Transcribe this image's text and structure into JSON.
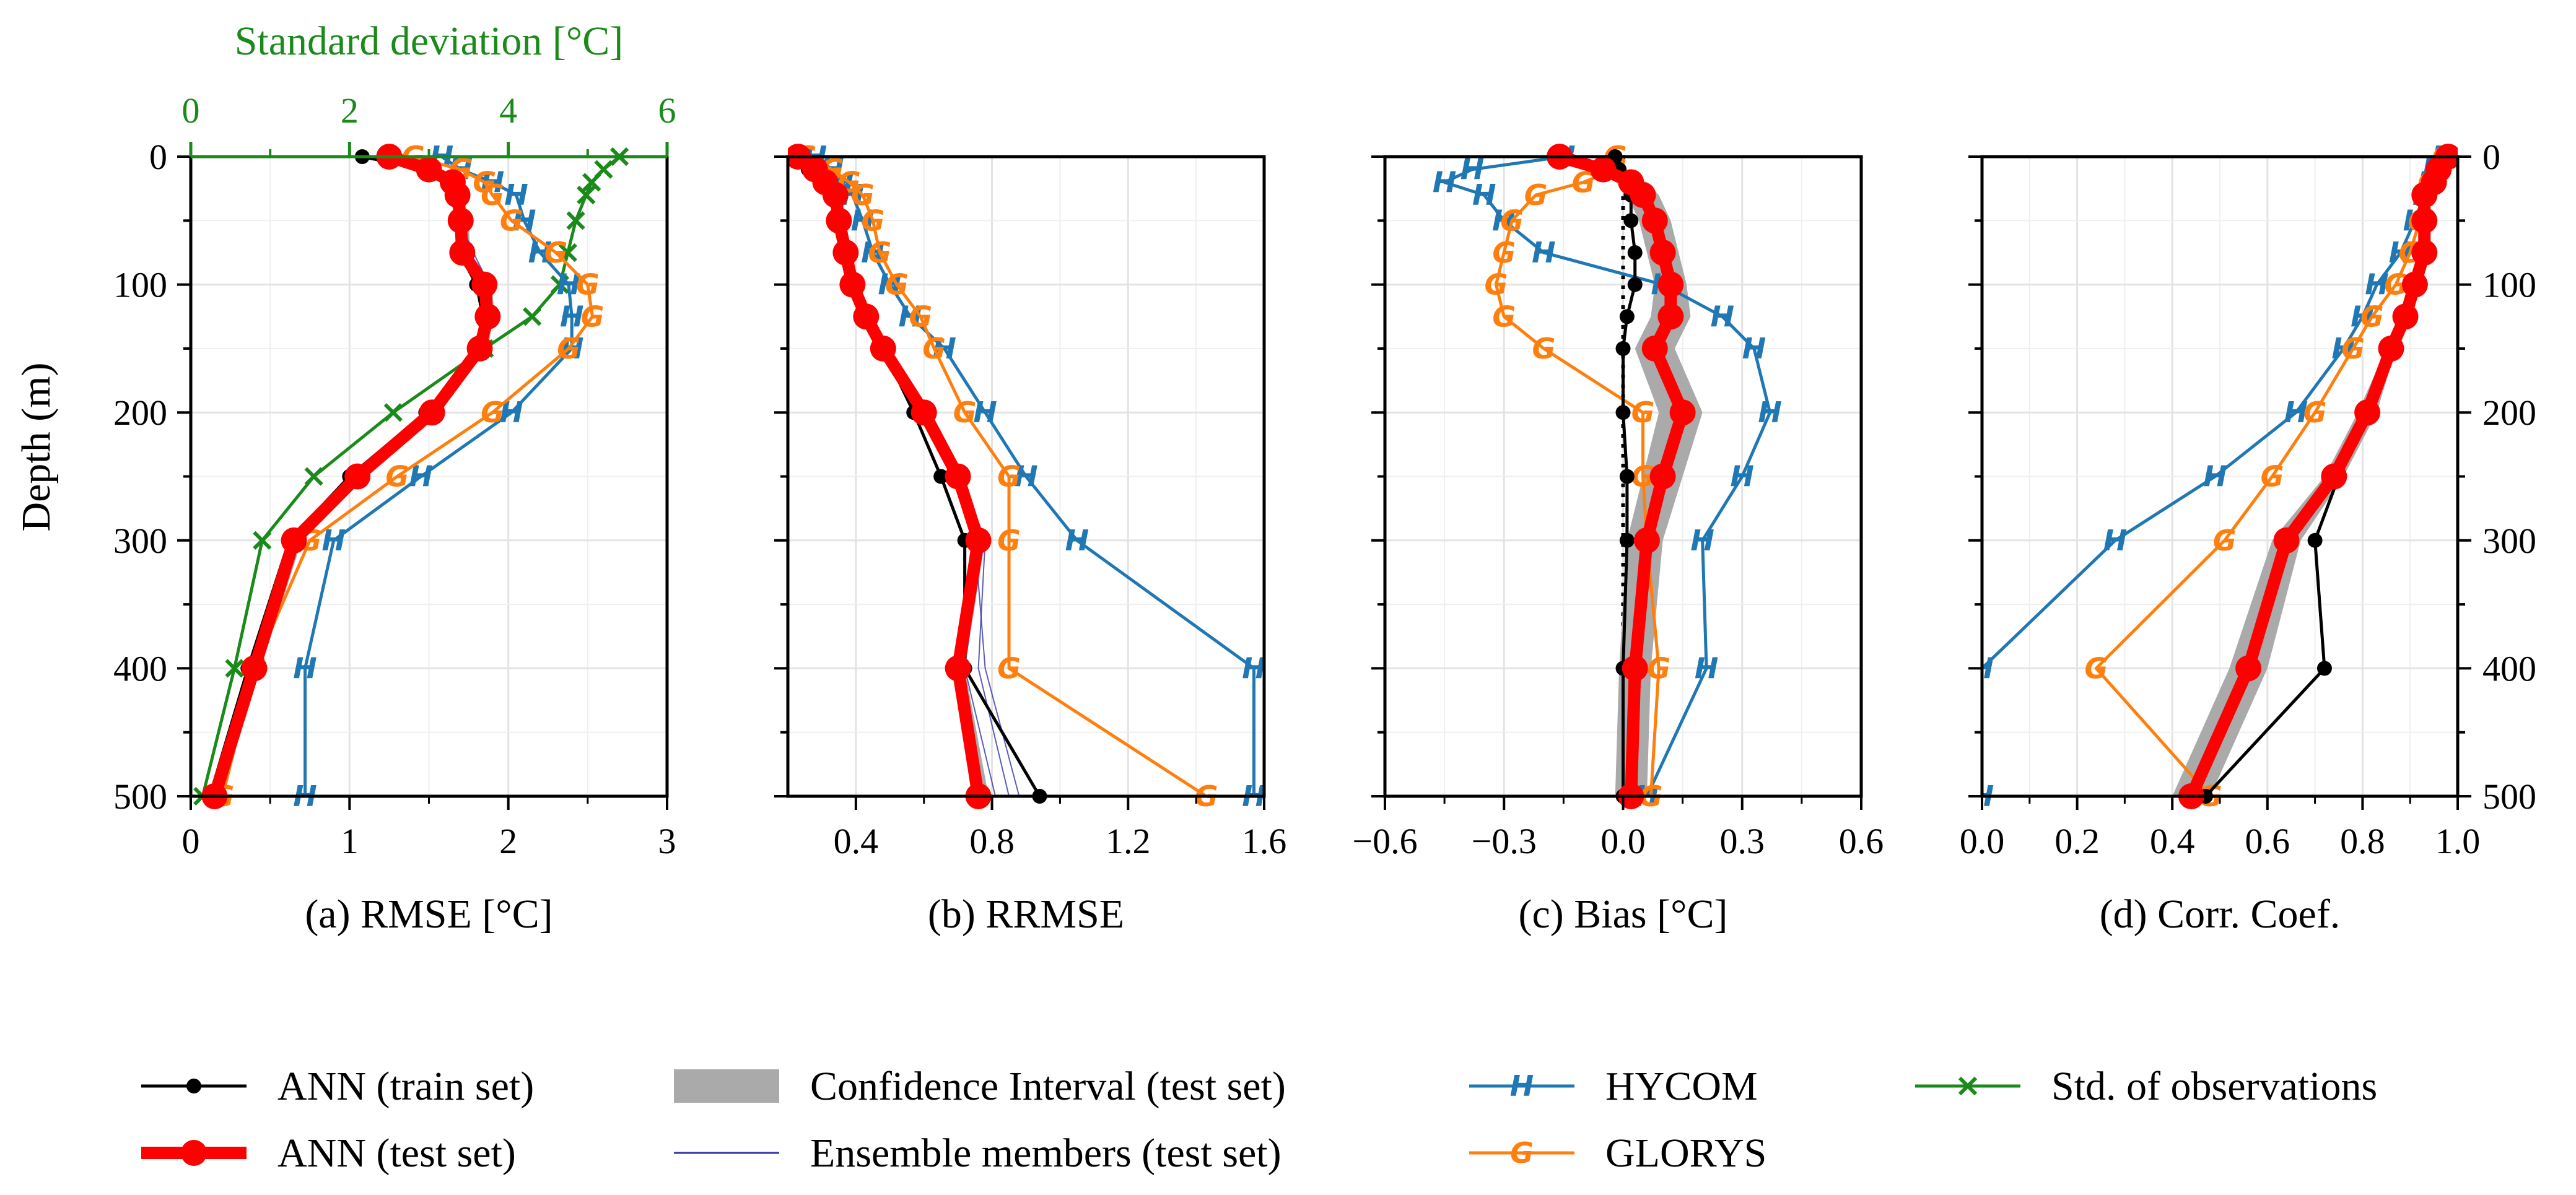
{
  "colors": {
    "train": "#000000",
    "test": "#ff0000",
    "ci": "#aaaaaa",
    "ensemble": "#3333aa",
    "hycom": "#1f77b4",
    "glorys": "#ff7f0e",
    "std": "#1a8a1a"
  },
  "chart_data": {
    "type": "line",
    "y_axis": {
      "label": "Depth (m)",
      "ylim": [
        500,
        0
      ],
      "ticks": [
        0,
        100,
        200,
        300,
        400,
        500
      ],
      "inverted": true
    },
    "depths": [
      0,
      10,
      20,
      30,
      50,
      75,
      100,
      125,
      150,
      200,
      250,
      300,
      400,
      500
    ],
    "panels": [
      {
        "id": "a",
        "xlabel": "(a) RMSE [°C]",
        "xlim": [
          0,
          3
        ],
        "xticks": [
          0,
          1,
          2,
          3
        ],
        "xtick_labels": [
          "0",
          "1",
          "2",
          "3"
        ],
        "top_axis": {
          "label": "Standard deviation [°C]",
          "xlim": [
            0,
            6
          ],
          "ticks": [
            0,
            2,
            4,
            6
          ],
          "tick_labels": [
            "0",
            "2",
            "4",
            "6"
          ]
        },
        "series": [
          {
            "name": "train",
            "values": [
              1.08,
              1.48,
              1.62,
              1.66,
              1.68,
              1.69,
              1.8,
              1.84,
              1.8,
              1.48,
              1.0,
              0.62,
              0.36,
              0.12
            ]
          },
          {
            "name": "test",
            "values": [
              1.25,
              1.5,
              1.65,
              1.68,
              1.7,
              1.71,
              1.85,
              1.87,
              1.82,
              1.52,
              1.05,
              0.65,
              0.4,
              0.15
            ]
          },
          {
            "name": "hycom",
            "values": [
              1.58,
              1.7,
              1.9,
              2.05,
              2.1,
              2.2,
              2.38,
              2.4,
              2.4,
              2.02,
              1.45,
              0.9,
              0.72,
              0.72
            ]
          },
          {
            "name": "glorys",
            "values": [
              1.4,
              1.7,
              1.85,
              1.9,
              2.02,
              2.3,
              2.5,
              2.53,
              2.38,
              1.9,
              1.3,
              0.75,
              0.4,
              0.2
            ]
          },
          {
            "name": "std",
            "values": [
              5.4,
              5.2,
              5.05,
              4.98,
              4.85,
              4.75,
              4.65,
              4.3,
              3.7,
              2.55,
              1.55,
              0.9,
              0.55,
              0.15
            ]
          }
        ],
        "ci": {
          "lo": [
            1.22,
            1.47,
            1.62,
            1.65,
            1.67,
            1.68,
            1.82,
            1.84,
            1.79,
            1.48,
            1.01,
            0.61,
            0.36,
            0.12
          ],
          "hi": [
            1.3,
            1.54,
            1.69,
            1.72,
            1.75,
            1.76,
            1.9,
            1.91,
            1.87,
            1.57,
            1.1,
            0.7,
            0.44,
            0.19
          ]
        },
        "ensemble": [
          [
            1.24,
            1.5,
            1.64,
            1.67,
            1.72,
            1.74,
            1.86,
            1.86,
            1.83,
            1.53,
            1.06,
            0.66,
            0.4,
            0.15
          ],
          [
            1.27,
            1.52,
            1.66,
            1.7,
            1.7,
            1.72,
            1.84,
            1.88,
            1.81,
            1.51,
            1.04,
            0.64,
            0.39,
            0.16
          ],
          [
            1.22,
            1.48,
            1.63,
            1.66,
            1.69,
            1.78,
            1.88,
            1.86,
            1.84,
            1.55,
            1.08,
            0.67,
            0.41,
            0.14
          ]
        ]
      },
      {
        "id": "b",
        "xlabel": "(b) RRMSE",
        "xlim": [
          0.2,
          1.6
        ],
        "xticks": [
          0.4,
          0.8,
          1.2,
          1.6
        ],
        "xtick_labels": [
          "0.4",
          "0.8",
          "1.2",
          "1.6"
        ],
        "series": [
          {
            "name": "train",
            "values": [
              0.21,
              0.26,
              0.3,
              0.33,
              0.35,
              0.37,
              0.4,
              0.44,
              0.48,
              0.57,
              0.65,
              0.72,
              0.72,
              0.94
            ]
          },
          {
            "name": "test",
            "values": [
              0.23,
              0.28,
              0.31,
              0.34,
              0.35,
              0.37,
              0.39,
              0.43,
              0.48,
              0.6,
              0.7,
              0.76,
              0.7,
              0.76
            ]
          },
          {
            "name": "hycom",
            "values": [
              0.28,
              0.33,
              0.36,
              0.39,
              0.42,
              0.45,
              0.5,
              0.56,
              0.66,
              0.78,
              0.9,
              1.05,
              1.57,
              1.57
            ]
          },
          {
            "name": "glorys",
            "values": [
              0.25,
              0.33,
              0.38,
              0.42,
              0.45,
              0.47,
              0.52,
              0.59,
              0.63,
              0.72,
              0.85,
              0.85,
              0.85,
              1.43
            ]
          }
        ],
        "ci": {
          "lo": [
            0.22,
            0.27,
            0.3,
            0.33,
            0.34,
            0.36,
            0.38,
            0.42,
            0.47,
            0.59,
            0.69,
            0.74,
            0.69,
            0.74
          ],
          "hi": [
            0.24,
            0.29,
            0.32,
            0.35,
            0.36,
            0.38,
            0.4,
            0.44,
            0.49,
            0.61,
            0.71,
            0.78,
            0.72,
            0.79
          ]
        },
        "ensemble": [
          [
            0.23,
            0.28,
            0.31,
            0.34,
            0.35,
            0.37,
            0.39,
            0.43,
            0.48,
            0.61,
            0.71,
            0.78,
            0.76,
            0.85
          ],
          [
            0.23,
            0.28,
            0.31,
            0.34,
            0.35,
            0.37,
            0.39,
            0.43,
            0.48,
            0.6,
            0.7,
            0.77,
            0.72,
            0.81
          ],
          [
            0.23,
            0.28,
            0.31,
            0.34,
            0.35,
            0.37,
            0.39,
            0.43,
            0.48,
            0.59,
            0.69,
            0.75,
            0.78,
            0.88
          ]
        ]
      },
      {
        "id": "c",
        "xlabel": "(c) Bias [°C]",
        "xlim": [
          -0.6,
          0.6
        ],
        "xticks": [
          -0.6,
          -0.3,
          0.0,
          0.3,
          0.6
        ],
        "xtick_labels": [
          "−0.6",
          "−0.3",
          "0.0",
          "0.3",
          "0.6"
        ],
        "zero_line": true,
        "series": [
          {
            "name": "train",
            "values": [
              -0.02,
              -0.01,
              0.01,
              0.02,
              0.02,
              0.03,
              0.03,
              0.01,
              0.0,
              0.0,
              0.01,
              0.01,
              0.0,
              0.0
            ]
          },
          {
            "name": "test",
            "values": [
              -0.16,
              -0.05,
              0.02,
              0.05,
              0.08,
              0.1,
              0.12,
              0.12,
              0.08,
              0.15,
              0.1,
              0.06,
              0.03,
              0.02
            ]
          },
          {
            "name": "hycom",
            "values": [
              -0.15,
              -0.38,
              -0.45,
              -0.35,
              -0.3,
              -0.2,
              0.1,
              0.25,
              0.33,
              0.37,
              0.3,
              0.2,
              0.21,
              0.06
            ]
          },
          {
            "name": "glorys",
            "values": [
              -0.02,
              -0.02,
              -0.1,
              -0.22,
              -0.28,
              -0.3,
              -0.32,
              -0.3,
              -0.2,
              0.05,
              0.05,
              0.06,
              0.09,
              0.07
            ]
          }
        ],
        "ci": {
          "lo": [
            -0.18,
            -0.07,
            -0.01,
            0.01,
            0.04,
            0.06,
            0.08,
            0.07,
            0.03,
            0.09,
            0.05,
            0.01,
            -0.01,
            -0.02
          ],
          "hi": [
            -0.13,
            -0.02,
            0.06,
            0.09,
            0.12,
            0.14,
            0.16,
            0.17,
            0.13,
            0.2,
            0.15,
            0.1,
            0.07,
            0.06
          ]
        }
      },
      {
        "id": "d",
        "xlabel": "(d) Corr. Coef.",
        "xlim": [
          0.0,
          1.0
        ],
        "xticks": [
          0.0,
          0.2,
          0.4,
          0.6,
          0.8,
          1.0
        ],
        "xtick_labels": [
          "0.0",
          "0.2",
          "0.4",
          "0.6",
          "0.8",
          "1.0"
        ],
        "right_yticks": true,
        "series": [
          {
            "name": "train",
            "values": [
              0.98,
              0.96,
              0.94,
              0.93,
              0.93,
              0.93,
              0.91,
              0.89,
              0.86,
              0.81,
              0.75,
              0.7,
              0.72,
              0.47
            ]
          },
          {
            "name": "test",
            "values": [
              0.98,
              0.96,
              0.95,
              0.93,
              0.93,
              0.93,
              0.91,
              0.89,
              0.86,
              0.81,
              0.74,
              0.64,
              0.56,
              0.44
            ]
          },
          {
            "name": "hycom",
            "values": [
              0.97,
              0.95,
              0.94,
              0.93,
              0.91,
              0.88,
              0.83,
              0.8,
              0.76,
              0.66,
              0.49,
              0.28,
              0.0,
              0.0
            ]
          },
          {
            "name": "glorys",
            "values": [
              0.97,
              0.96,
              0.94,
              0.93,
              0.92,
              0.9,
              0.87,
              0.82,
              0.78,
              0.7,
              0.61,
              0.51,
              0.24,
              0.48
            ]
          }
        ],
        "ci": {
          "lo": [
            0.97,
            0.95,
            0.94,
            0.92,
            0.92,
            0.92,
            0.9,
            0.88,
            0.85,
            0.79,
            0.72,
            0.61,
            0.52,
            0.4
          ],
          "hi": [
            0.99,
            0.97,
            0.96,
            0.94,
            0.94,
            0.94,
            0.92,
            0.9,
            0.87,
            0.83,
            0.76,
            0.67,
            0.6,
            0.48
          ]
        }
      }
    ],
    "legend": {
      "placement": "bottom",
      "entries": [
        {
          "key": "train",
          "label": "ANN (train set)"
        },
        {
          "key": "test",
          "label": "ANN (test set)"
        },
        {
          "key": "ci",
          "label": "Confidence Interval (test set)"
        },
        {
          "key": "ensemble",
          "label": "Ensemble members (test set)"
        },
        {
          "key": "hycom",
          "label": "HYCOM"
        },
        {
          "key": "glorys",
          "label": "GLORYS"
        },
        {
          "key": "std",
          "label": "Std. of observations"
        }
      ]
    }
  }
}
